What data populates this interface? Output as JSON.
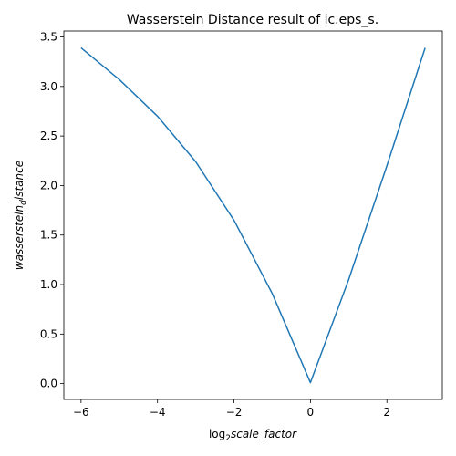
{
  "chart_data": {
    "type": "line",
    "title": "Wasserstein Distance result of ic.eps_s.",
    "xlabel": {
      "prefix": "log",
      "sub": "2",
      "main": "scale_factor"
    },
    "ylabel": {
      "main": "wasserstein",
      "sub": "d",
      "rest": "istance"
    },
    "xlim": [
      -6.45,
      3.45
    ],
    "ylim": [
      -0.16,
      3.56
    ],
    "xticks": [
      -6,
      -4,
      -2,
      0,
      2
    ],
    "xtick_labels": [
      "−6",
      "−4",
      "−2",
      "0",
      "2"
    ],
    "yticks": [
      0.0,
      0.5,
      1.0,
      1.5,
      2.0,
      2.5,
      3.0,
      3.5
    ],
    "ytick_labels": [
      "0.0",
      "0.5",
      "1.0",
      "1.5",
      "2.0",
      "2.5",
      "3.0",
      "3.5"
    ],
    "grid": false,
    "series": [
      {
        "color": "#1f77b4",
        "x": [
          -6,
          -5,
          -4,
          -3,
          -2,
          -1,
          0,
          1,
          2,
          3
        ],
        "y": [
          3.39,
          3.07,
          2.7,
          2.24,
          1.65,
          0.91,
          0.01,
          1.05,
          2.2,
          3.39
        ]
      }
    ]
  }
}
